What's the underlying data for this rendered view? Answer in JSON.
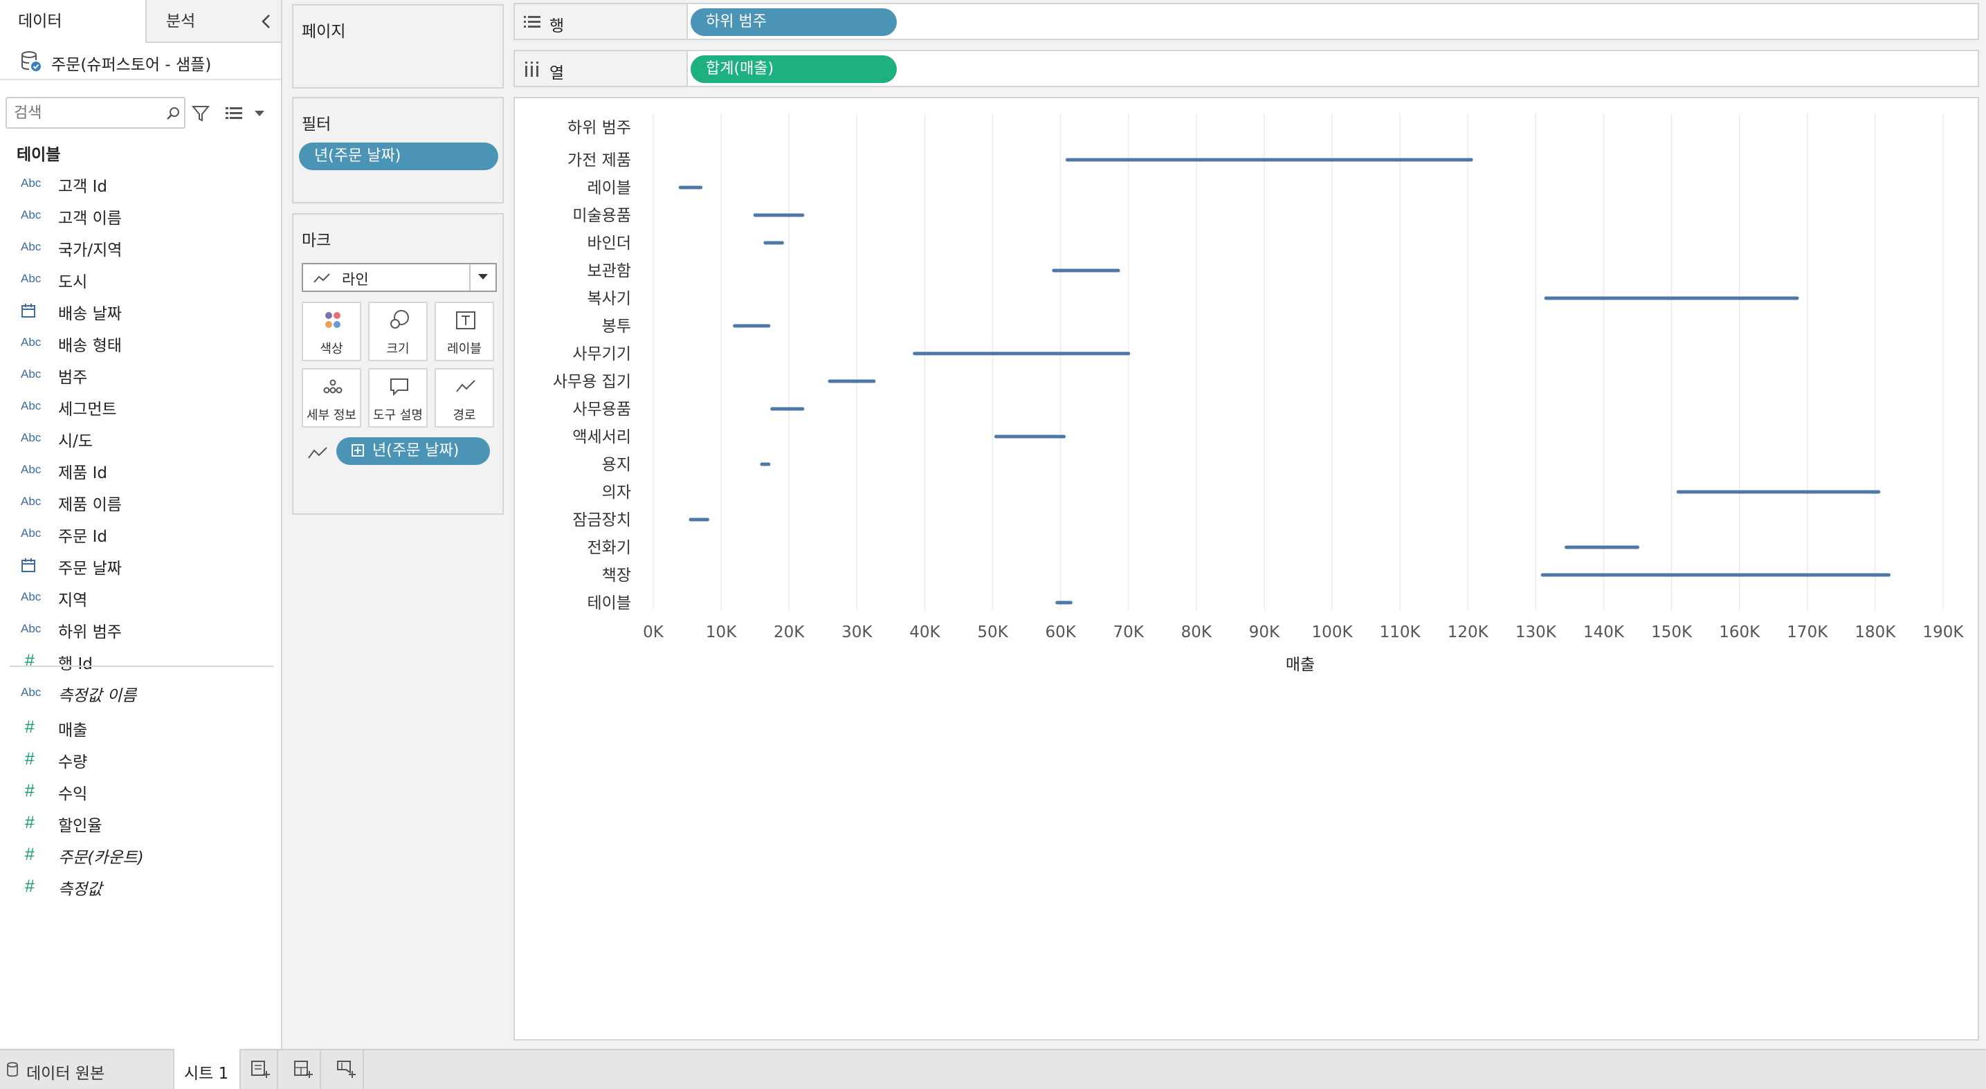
{
  "left_pane": {
    "tabs": [
      "데이터",
      "분석"
    ],
    "datasource": "주문(슈퍼스토어 - 샘플)",
    "search_placeholder": "검색",
    "tables_heading": "테이블",
    "fields": [
      {
        "type": "Abc",
        "label": "고객 Id"
      },
      {
        "type": "Abc",
        "label": "고객 이름"
      },
      {
        "type": "Abc",
        "label": "국가/지역"
      },
      {
        "type": "Abc",
        "label": "도시"
      },
      {
        "type": "date",
        "label": "배송 날짜"
      },
      {
        "type": "Abc",
        "label": "배송 형태"
      },
      {
        "type": "Abc",
        "label": "범주"
      },
      {
        "type": "Abc",
        "label": "세그먼트"
      },
      {
        "type": "Abc",
        "label": "시/도"
      },
      {
        "type": "Abc",
        "label": "제품 Id"
      },
      {
        "type": "Abc",
        "label": "제품 이름"
      },
      {
        "type": "Abc",
        "label": "주문 Id"
      },
      {
        "type": "date",
        "label": "주문 날짜"
      },
      {
        "type": "Abc",
        "label": "지역"
      },
      {
        "type": "Abc",
        "label": "하위 범주"
      },
      {
        "type": "#",
        "label": "행 Id"
      },
      {
        "type": "Abc",
        "label": "측정값 이름",
        "italic": true
      }
    ],
    "measures": [
      {
        "type": "#",
        "label": "매출"
      },
      {
        "type": "#",
        "label": "수량"
      },
      {
        "type": "#",
        "label": "수익"
      },
      {
        "type": "#",
        "label": "할인율"
      },
      {
        "type": "#",
        "label": "주문(카운트)",
        "italic": true
      },
      {
        "type": "#",
        "label": "측정값",
        "italic": true
      }
    ]
  },
  "cards": {
    "pages_title": "페이지",
    "filters_title": "필터",
    "filter_pill": "년(주문 날짜)",
    "marks_title": "마크",
    "mark_type": "라인",
    "mark_buttons": {
      "color": "색상",
      "size": "크기",
      "label": "레이블",
      "detail": "세부 정보",
      "tooltip": "도구 설명",
      "path": "경로"
    },
    "marks_pill": "년(주문 날짜)"
  },
  "shelves": {
    "rows_label": "행",
    "rows_pill": "하위 범주",
    "cols_label": "열",
    "cols_pill": "합계(매출)"
  },
  "colors": {
    "pill_blue": "#4c94b5",
    "pill_green": "#1fb081",
    "line": "#4e79a7",
    "grid": "#ebebeb"
  },
  "chart_data": {
    "type": "line",
    "row_header": "하위 범주",
    "xlabel": "매출",
    "xlim": [
      0,
      190000
    ],
    "x_ticks": [
      0,
      10000,
      20000,
      30000,
      40000,
      50000,
      60000,
      70000,
      80000,
      90000,
      100000,
      110000,
      120000,
      130000,
      140000,
      150000,
      160000,
      170000,
      180000,
      190000
    ],
    "x_tick_labels": [
      "0K",
      "10K",
      "20K",
      "30K",
      "40K",
      "50K",
      "60K",
      "70K",
      "80K",
      "90K",
      "100K",
      "110K",
      "120K",
      "130K",
      "140K",
      "150K",
      "160K",
      "170K",
      "180K",
      "190K"
    ],
    "grid": "vertical",
    "categories": [
      "가전 제품",
      "레이블",
      "미술용품",
      "바인더",
      "보관함",
      "복사기",
      "봉투",
      "사무기기",
      "사무용 집기",
      "사무용품",
      "액세서리",
      "용지",
      "의자",
      "잠금장치",
      "전화기",
      "책장",
      "테이블"
    ],
    "ranges": [
      [
        61000,
        120500
      ],
      [
        4000,
        7000
      ],
      [
        15000,
        22000
      ],
      [
        16500,
        19000
      ],
      [
        59000,
        68500
      ],
      [
        131500,
        168500
      ],
      [
        12000,
        17000
      ],
      [
        38500,
        70000
      ],
      [
        26000,
        32500
      ],
      [
        17500,
        22000
      ],
      [
        50500,
        60500
      ],
      [
        16000,
        17000
      ],
      [
        151000,
        180500
      ],
      [
        5500,
        8000
      ],
      [
        134500,
        145000
      ],
      [
        131000,
        182000
      ],
      [
        59500,
        61500
      ]
    ]
  },
  "bottom_bar": {
    "datasource_tab": "데이터 원본",
    "sheet_tab": "시트 1"
  }
}
